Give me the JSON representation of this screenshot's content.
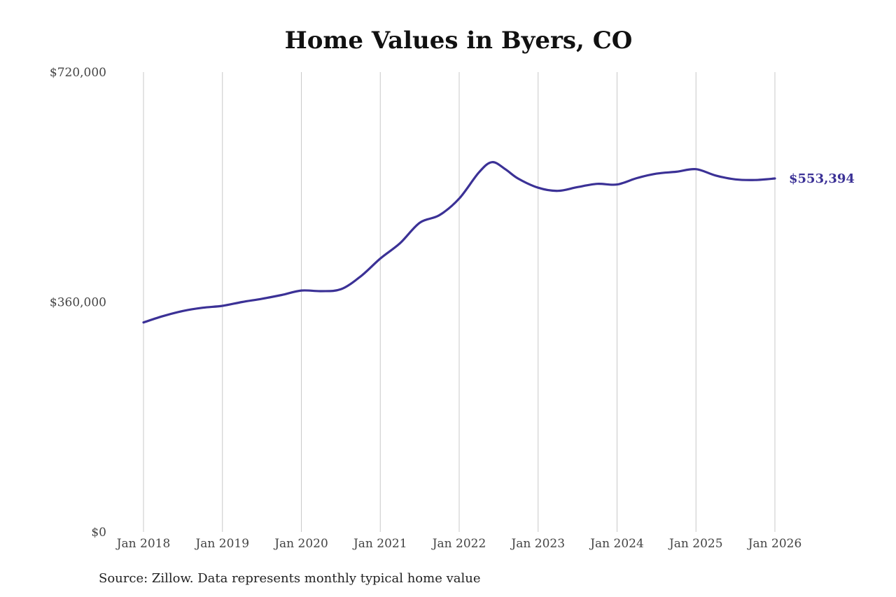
{
  "chart_data": {
    "type": "line",
    "title": "Home Values in Byers, CO",
    "xlabel": "",
    "ylabel": "",
    "y_ticks": [
      {
        "value": 0,
        "label": "$0"
      },
      {
        "value": 360000,
        "label": "$360,000"
      },
      {
        "value": 720000,
        "label": "$720,000"
      }
    ],
    "ylim": [
      0,
      720000
    ],
    "x_ticks": [
      {
        "value": 2018,
        "label": "Jan 2018"
      },
      {
        "value": 2019,
        "label": "Jan 2019"
      },
      {
        "value": 2020,
        "label": "Jan 2020"
      },
      {
        "value": 2021,
        "label": "Jan 2021"
      },
      {
        "value": 2022,
        "label": "Jan 2022"
      },
      {
        "value": 2023,
        "label": "Jan 2023"
      },
      {
        "value": 2024,
        "label": "Jan 2024"
      },
      {
        "value": 2025,
        "label": "Jan 2025"
      },
      {
        "value": 2026,
        "label": "Jan 2026"
      }
    ],
    "xlim": [
      2018,
      2026
    ],
    "grid": "vertical",
    "series": [
      {
        "color": "#3b3196",
        "points": [
          {
            "x": "2018-01",
            "y": 328000
          },
          {
            "x": "2018-04",
            "y": 338000
          },
          {
            "x": "2018-07",
            "y": 346000
          },
          {
            "x": "2018-10",
            "y": 351000
          },
          {
            "x": "2019-01",
            "y": 354000
          },
          {
            "x": "2019-04",
            "y": 360000
          },
          {
            "x": "2019-07",
            "y": 365000
          },
          {
            "x": "2019-10",
            "y": 371000
          },
          {
            "x": "2020-01",
            "y": 378000
          },
          {
            "x": "2020-04",
            "y": 377000
          },
          {
            "x": "2020-07",
            "y": 380000
          },
          {
            "x": "2020-10",
            "y": 400000
          },
          {
            "x": "2021-01",
            "y": 428000
          },
          {
            "x": "2021-04",
            "y": 452000
          },
          {
            "x": "2021-07",
            "y": 484000
          },
          {
            "x": "2021-10",
            "y": 496000
          },
          {
            "x": "2022-01",
            "y": 522000
          },
          {
            "x": "2022-04",
            "y": 563000
          },
          {
            "x": "2022-06",
            "y": 579000
          },
          {
            "x": "2022-08",
            "y": 568000
          },
          {
            "x": "2022-10",
            "y": 553000
          },
          {
            "x": "2023-01",
            "y": 539000
          },
          {
            "x": "2023-04",
            "y": 534000
          },
          {
            "x": "2023-07",
            "y": 540000
          },
          {
            "x": "2023-10",
            "y": 545000
          },
          {
            "x": "2024-01",
            "y": 544000
          },
          {
            "x": "2024-04",
            "y": 554000
          },
          {
            "x": "2024-07",
            "y": 561000
          },
          {
            "x": "2024-10",
            "y": 564000
          },
          {
            "x": "2025-01",
            "y": 568000
          },
          {
            "x": "2025-04",
            "y": 558000
          },
          {
            "x": "2025-07",
            "y": 552000
          },
          {
            "x": "2025-10",
            "y": 551000
          },
          {
            "x": "2026-01",
            "y": 553394
          }
        ]
      }
    ],
    "annotations": [
      {
        "text": "$553,394",
        "x": "2026-01",
        "y": 553394
      }
    ]
  },
  "source_note": "Source: Zillow. Data represents monthly typical home value"
}
